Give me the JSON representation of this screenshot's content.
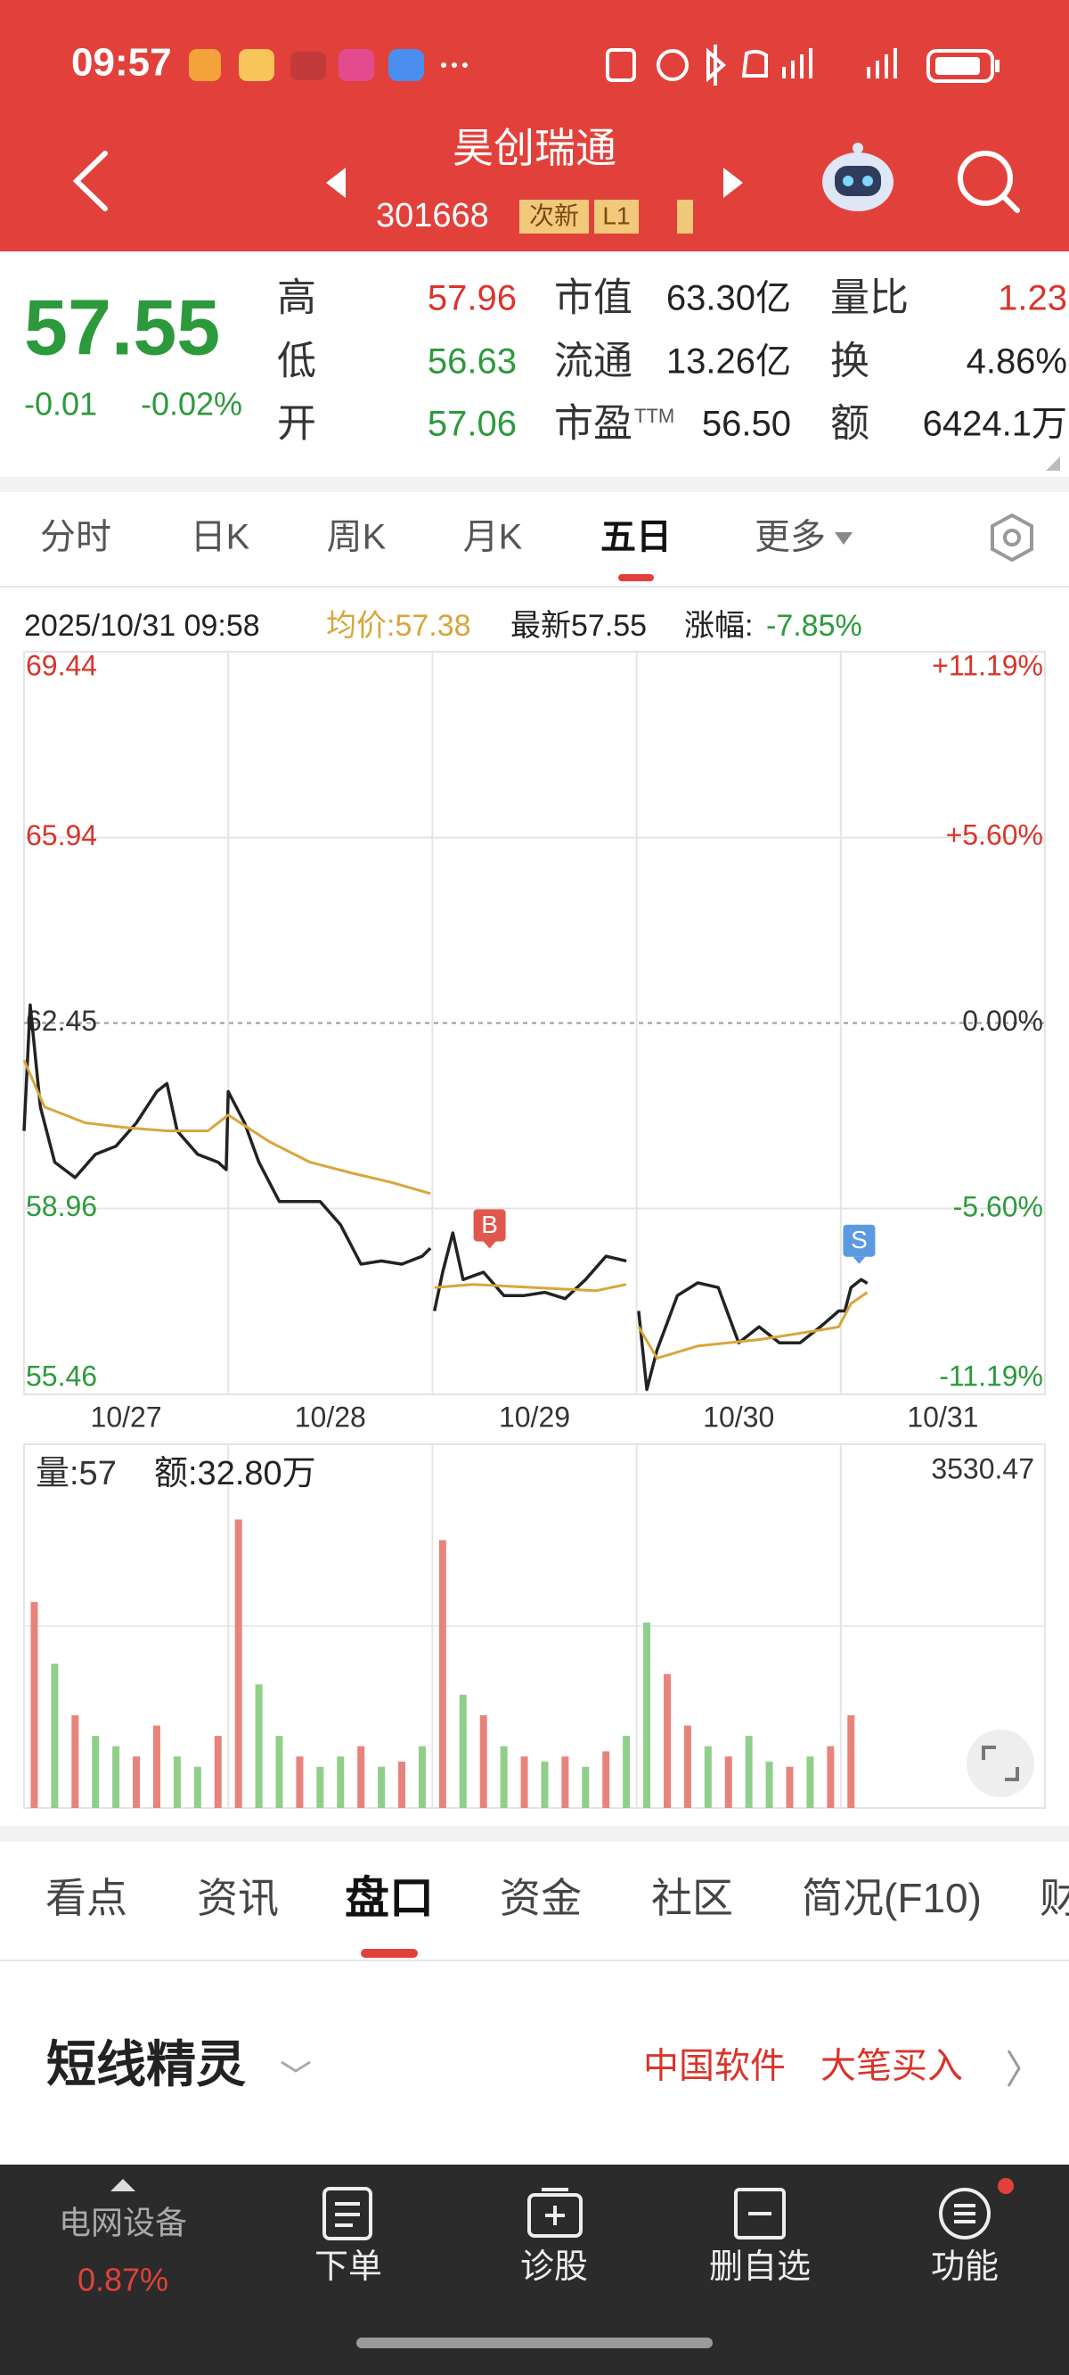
{
  "status_bar": {
    "time": "09:57"
  },
  "header": {
    "title": "昊创瑞通",
    "code": "301668",
    "tags": [
      "次新",
      "L1"
    ]
  },
  "quote": {
    "price": "57.55",
    "change": "-0.01",
    "change_pct": "-0.02%",
    "rows": [
      [
        {
          "label": "高",
          "value": "57.96",
          "color": "#d9342b"
        },
        {
          "label": "市值",
          "value": "63.30亿",
          "color": "#222222"
        },
        {
          "label": "量比",
          "value": "1.23",
          "color": "#d9342b"
        }
      ],
      [
        {
          "label": "低",
          "value": "56.63",
          "color": "#2c9a3c"
        },
        {
          "label": "流通",
          "value": "13.26亿",
          "color": "#222222"
        },
        {
          "label": "换",
          "value": "4.86%",
          "color": "#222222"
        }
      ],
      [
        {
          "label": "开",
          "value": "57.06",
          "color": "#2c9a3c"
        },
        {
          "label": "市盈",
          "label_sup": "TTM",
          "value": "56.50",
          "color": "#222222"
        },
        {
          "label": "额",
          "value": "6424.1万",
          "color": "#222222"
        }
      ]
    ]
  },
  "period_tabs": {
    "items": [
      "分时",
      "日K",
      "周K",
      "月K",
      "五日",
      "更多"
    ],
    "active": 4
  },
  "chart_info": {
    "datetime": "2025/10/31 09:58",
    "avg_price": "均价:57.38",
    "latest": "最新57.55",
    "change_label": "涨幅:",
    "change_value": "-7.85%"
  },
  "chart_data": [
    {
      "type": "line",
      "categories": [
        "10/27",
        "10/28",
        "10/29",
        "10/30",
        "10/31"
      ],
      "xlim": [
        0,
        5
      ],
      "ylim": [
        55.46,
        69.44
      ],
      "yticks": [
        69.44,
        65.94,
        62.45,
        58.96,
        55.46
      ],
      "y2lim": [
        -11.19,
        11.19
      ],
      "y2ticks": [
        {
          "value": 11.19,
          "label": "+11.19%"
        },
        {
          "value": 5.6,
          "label": "+5.60%"
        },
        {
          "value": 0,
          "label": "0.00%"
        },
        {
          "value": -5.6,
          "label": "-5.60%"
        },
        {
          "value": -11.19,
          "label": "-11.19%"
        }
      ],
      "grid": true,
      "series": [
        {
          "color": "#222222",
          "x": [
            0,
            0.03,
            0.08,
            0.15,
            0.25,
            0.35,
            0.45,
            0.55,
            0.65,
            0.7,
            0.75,
            0.85,
            0.95,
            0.99,
            1.0,
            1.08,
            1.15,
            1.25,
            1.35,
            1.45,
            1.55,
            1.65,
            1.75,
            1.85,
            1.95,
            1.99,
            2.0,
            2.01,
            2.05,
            2.1,
            2.15,
            2.25,
            2.35,
            2.45,
            2.55,
            2.65,
            2.75,
            2.85,
            2.95,
            3.0,
            3.01,
            3.05,
            3.1,
            3.2,
            3.3,
            3.4,
            3.5,
            3.6,
            3.7,
            3.8,
            3.9,
            3.99,
            4.02,
            4.05,
            4.1,
            4.13
          ],
          "values": [
            60.42,
            62.79,
            60.87,
            59.83,
            59.54,
            59.98,
            60.13,
            60.57,
            61.16,
            61.31,
            60.42,
            59.98,
            59.83,
            59.69,
            61.16,
            60.57,
            59.83,
            59.09,
            59.09,
            59.09,
            58.65,
            57.91,
            57.97,
            57.91,
            58.06,
            58.21,
            null,
            57.03,
            57.76,
            58.5,
            57.62,
            57.76,
            57.32,
            57.32,
            57.38,
            57.26,
            57.62,
            58.06,
            57.97,
            null,
            57.03,
            55.55,
            56.29,
            57.32,
            57.56,
            57.47,
            56.43,
            56.73,
            56.43,
            56.43,
            56.73,
            57.03,
            57.03,
            57.47,
            57.62,
            57.55
          ]
        },
        {
          "color": "#d9a53c",
          "x": [
            0,
            0.1,
            0.3,
            0.5,
            0.7,
            0.9,
            1.0,
            1.2,
            1.4,
            1.6,
            1.8,
            1.99,
            2.0,
            2.01,
            2.2,
            2.5,
            2.8,
            2.95,
            3.0,
            3.01,
            3.1,
            3.3,
            3.6,
            3.9,
            3.99,
            4.05,
            4.13
          ],
          "values": [
            61.75,
            60.87,
            60.57,
            60.48,
            60.42,
            60.42,
            60.72,
            60.22,
            59.83,
            59.63,
            59.45,
            59.24,
            null,
            57.47,
            57.53,
            57.47,
            57.41,
            57.53,
            null,
            56.73,
            56.14,
            56.37,
            56.49,
            56.67,
            56.73,
            57.17,
            57.38
          ]
        }
      ],
      "markers": [
        {
          "label": "B",
          "x": 2.28,
          "value": 57.97,
          "color": "#e0574d"
        },
        {
          "label": "S",
          "x": 4.09,
          "value": 57.68,
          "color": "#5b9ae0"
        }
      ]
    },
    {
      "type": "bar",
      "volume_label": "量:57",
      "amount_label": "额:32.80万",
      "xlim": [
        0,
        5
      ],
      "ylim": [
        0,
        3530.47
      ],
      "yticks": [
        3530.47
      ],
      "x": [
        0.05,
        0.15,
        0.25,
        0.35,
        0.45,
        0.55,
        0.65,
        0.75,
        0.85,
        0.95,
        1.05,
        1.15,
        1.25,
        1.35,
        1.45,
        1.55,
        1.65,
        1.75,
        1.85,
        1.95,
        2.05,
        2.15,
        2.25,
        2.35,
        2.45,
        2.55,
        2.65,
        2.75,
        2.85,
        2.95,
        3.05,
        3.15,
        3.25,
        3.35,
        3.45,
        3.55,
        3.65,
        3.75,
        3.85,
        3.95,
        4.05
      ],
      "series": [
        {
          "color": "#e8837c",
          "values": [
            2000,
            null,
            900,
            null,
            null,
            500,
            800,
            null,
            null,
            700,
            2800,
            null,
            null,
            500,
            null,
            null,
            600,
            null,
            450,
            null,
            2600,
            null,
            900,
            null,
            500,
            null,
            500,
            null,
            550,
            null,
            null,
            1300,
            800,
            null,
            500,
            null,
            null,
            400,
            null,
            600,
            900
          ]
        },
        {
          "color": "#8fcf8a",
          "values": [
            null,
            1400,
            null,
            700,
            600,
            null,
            null,
            500,
            400,
            null,
            null,
            1200,
            700,
            null,
            400,
            500,
            null,
            400,
            null,
            600,
            null,
            1100,
            null,
            600,
            null,
            450,
            null,
            400,
            null,
            700,
            1800,
            null,
            null,
            600,
            null,
            700,
            450,
            null,
            500,
            null,
            null
          ]
        }
      ]
    }
  ],
  "info_tabs": {
    "items": [
      "看点",
      "资讯",
      "盘口",
      "资金",
      "社区",
      "简况(F10)",
      "财"
    ],
    "active": 2
  },
  "section": {
    "title": "短线精灵",
    "tag1": "中国软件",
    "tag2": "大笔买入"
  },
  "bottom_nav": {
    "sector": "电网设备",
    "sector_change": "0.87%",
    "items": [
      "下单",
      "诊股",
      "删自选",
      "功能"
    ]
  }
}
